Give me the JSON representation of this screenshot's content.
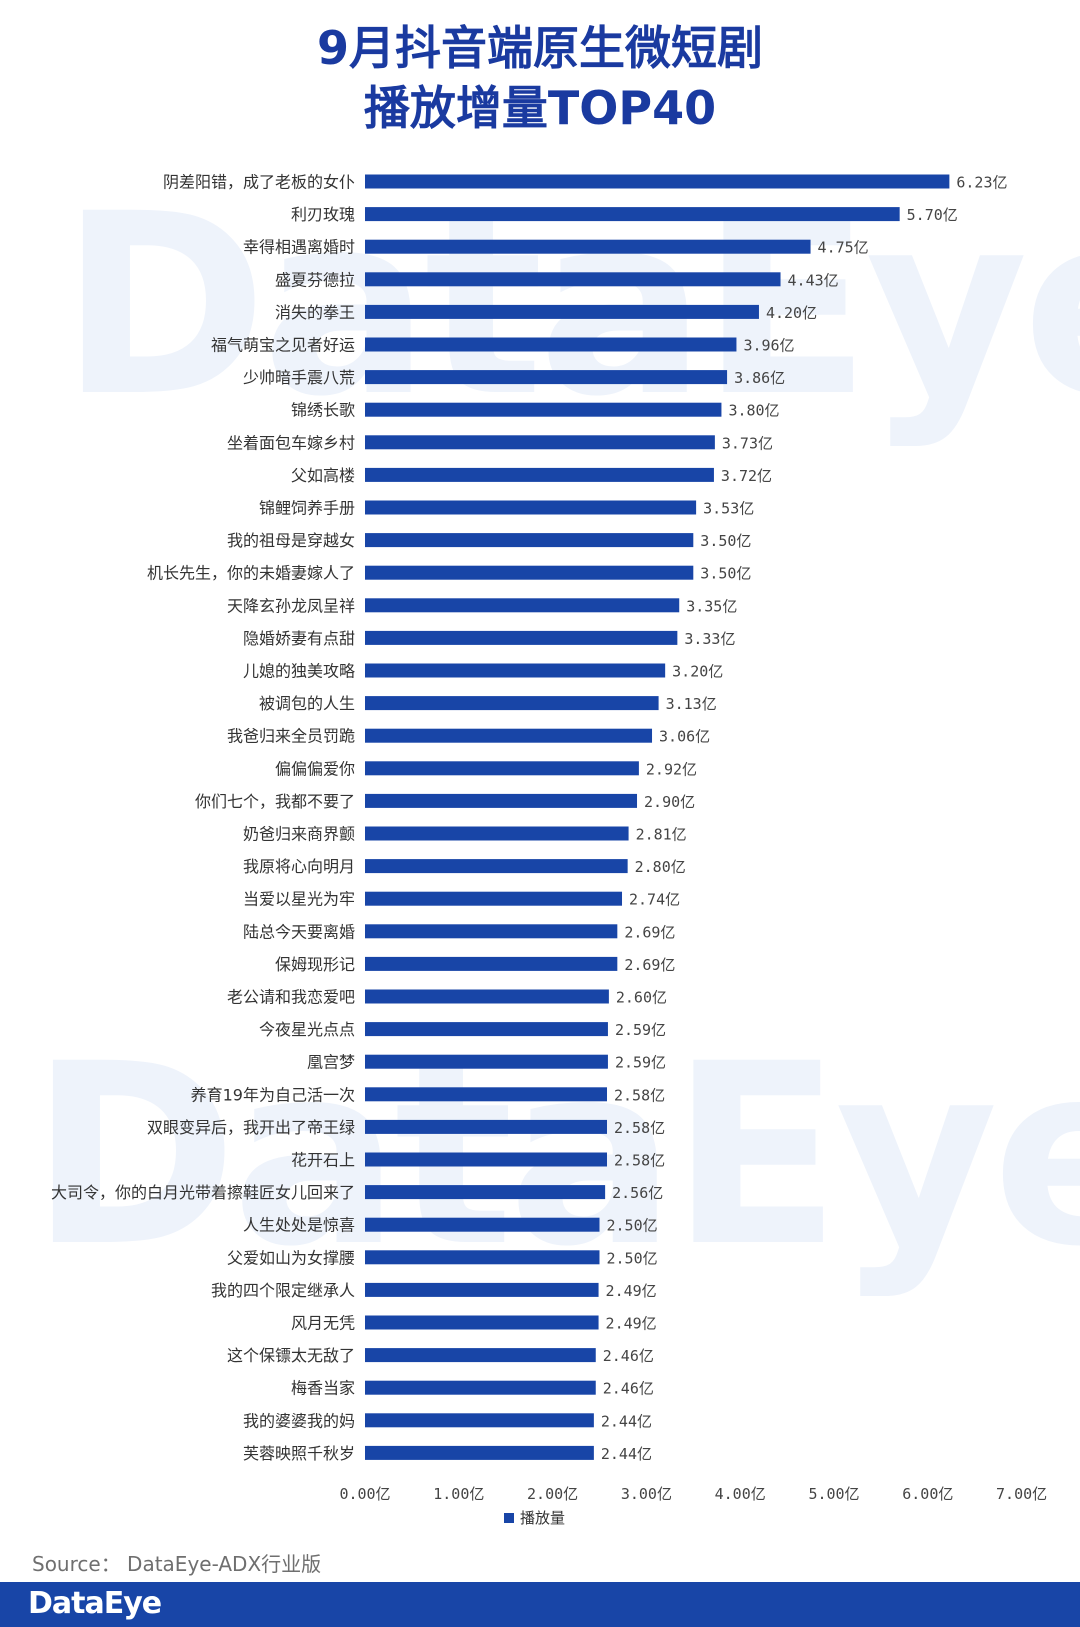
{
  "title_line1": "9月抖音端原生微短剧",
  "title_line2": "播放增量TOP40",
  "watermark": "DataEye",
  "source": "Source：  DataEye-ADX行业版",
  "footer_logo": "DataEye",
  "colors": {
    "bar": "#1845a7",
    "title": "#1a3aa0",
    "footer": "#1845a7"
  },
  "chart_data": {
    "type": "bar",
    "orientation": "horizontal",
    "value_suffix": "亿",
    "xlim": [
      0,
      7
    ],
    "xticks": [
      "0.00亿",
      "1.00亿",
      "2.00亿",
      "3.00亿",
      "4.00亿",
      "5.00亿",
      "6.00亿",
      "7.00亿"
    ],
    "legend": "bottom",
    "series": [
      {
        "name": "播放量",
        "categories": [
          "阴差阳错，成了老板的女仆",
          "利刃玫瑰",
          "幸得相遇离婚时",
          "盛夏芬德拉",
          "消失的拳王",
          "福气萌宝之见者好运",
          "少帅暗手震八荒",
          "锦绣长歌",
          "坐着面包车嫁乡村",
          "父如高楼",
          "锦鲤饲养手册",
          "我的祖母是穿越女",
          "机长先生，你的未婚妻嫁人了",
          "天降玄孙龙凤呈祥",
          "隐婚娇妻有点甜",
          "儿媳的独美攻略",
          "被调包的人生",
          "我爸归来全员罚跪",
          "偏偏偏爱你",
          "你们七个，我都不要了",
          "奶爸归来商界颤",
          "我原将心向明月",
          "当爱以星光为牢",
          "陆总今天要离婚",
          "保姆现形记",
          "老公请和我恋爱吧",
          "今夜星光点点",
          "凰宫梦",
          "养育19年为自己活一次",
          "双眼变异后，我开出了帝王绿",
          "花开石上",
          "大司令，你的白月光带着擦鞋匠女儿回来了",
          "人生处处是惊喜",
          "父爱如山为女撑腰",
          "我的四个限定继承人",
          "风月无凭",
          "这个保镖太无敌了",
          "梅香当家",
          "我的婆婆我的妈",
          "芙蓉映照千秋岁"
        ],
        "values": [
          6.23,
          5.7,
          4.75,
          4.43,
          4.2,
          3.96,
          3.86,
          3.8,
          3.73,
          3.72,
          3.53,
          3.5,
          3.5,
          3.35,
          3.33,
          3.2,
          3.13,
          3.06,
          2.92,
          2.9,
          2.81,
          2.8,
          2.74,
          2.69,
          2.69,
          2.6,
          2.59,
          2.59,
          2.58,
          2.58,
          2.58,
          2.56,
          2.5,
          2.5,
          2.49,
          2.49,
          2.46,
          2.46,
          2.44,
          2.44
        ],
        "data_labels": [
          "6.23亿",
          "5.70亿",
          "4.75亿",
          "4.43亿",
          "4.20亿",
          "3.96亿",
          "3.86亿",
          "3.80亿",
          "3.73亿",
          "3.72亿",
          "3.53亿",
          "3.50亿",
          "3.50亿",
          "3.35亿",
          "3.33亿",
          "3.20亿",
          "3.13亿",
          "3.06亿",
          "2.92亿",
          "2.90亿",
          "2.81亿",
          "2.80亿",
          "2.74亿",
          "2.69亿",
          "2.69亿",
          "2.60亿",
          "2.59亿",
          "2.59亿",
          "2.58亿",
          "2.58亿",
          "2.58亿",
          "2.56亿",
          "2.50亿",
          "2.50亿",
          "2.49亿",
          "2.49亿",
          "2.46亿",
          "2.46亿",
          "2.44亿",
          "2.44亿"
        ]
      }
    ]
  }
}
